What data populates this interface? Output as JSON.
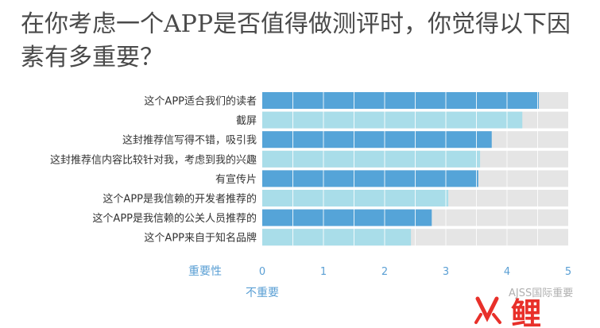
{
  "title": "在你考虑一个APP是否值得做测评时，你觉得以下因素有多重要？",
  "colors": {
    "bar_dark": "#55a4d8",
    "bar_light": "#a9dde9",
    "track": "#e5e5e5",
    "axis_text": "#5a9fd4",
    "label_text": "#333333"
  },
  "chart_data": {
    "type": "bar",
    "orientation": "horizontal",
    "categories": [
      "这个APP适合我们的读者",
      "截屏",
      "这封推荐信写得不错，吸引我",
      "这封推荐信内容比较针对我，考虑到我的兴趣",
      "有宣传片",
      "这个APP是我信赖的开发者推荐的",
      "这个APP是我信赖的公关人员推荐的",
      "这个APP来自于知名品牌"
    ],
    "values": [
      4.52,
      4.25,
      3.75,
      3.56,
      3.53,
      3.04,
      2.77,
      2.43
    ],
    "xlim": [
      0,
      5
    ],
    "xticks": [
      "0",
      "1",
      "2",
      "3",
      "4",
      "5"
    ],
    "xlabel": "重要性",
    "xlabel_low": "不重要",
    "grid": true
  },
  "watermark": {
    "text": "AJSS国际重要",
    "logo_text": "鲤"
  }
}
